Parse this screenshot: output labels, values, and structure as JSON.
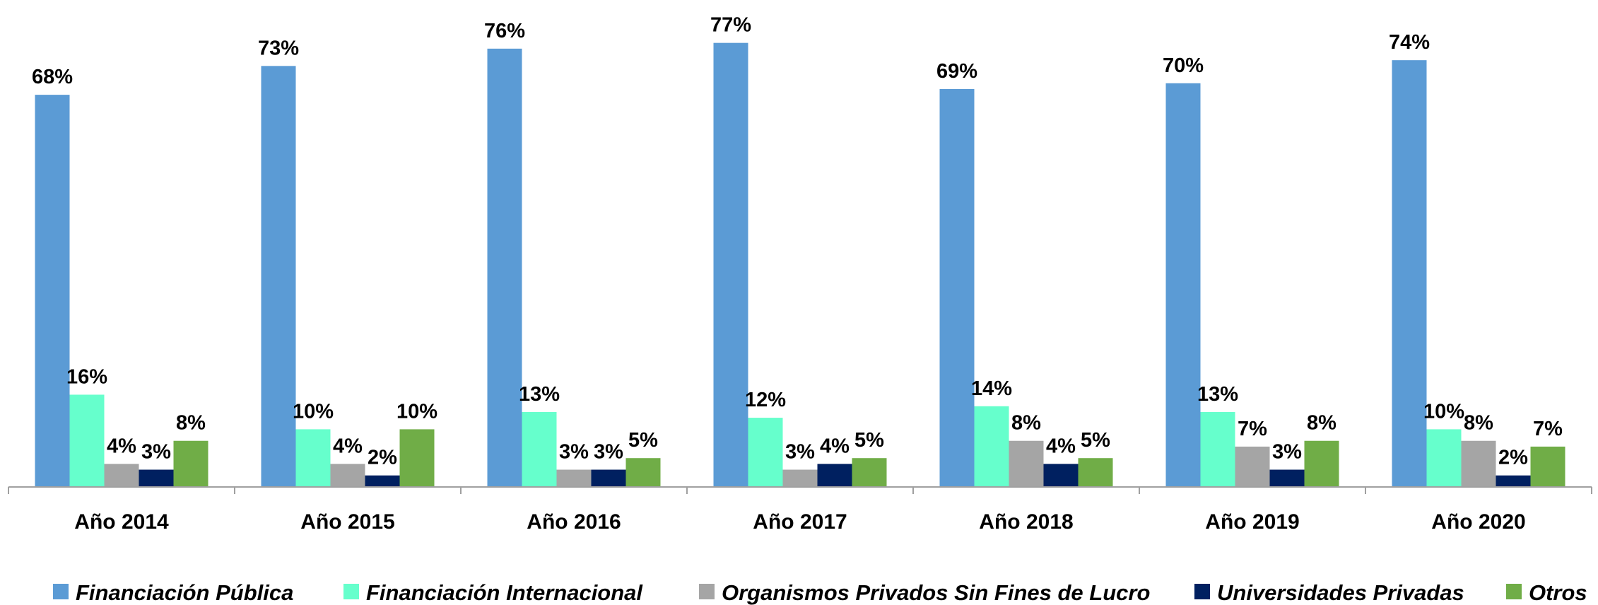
{
  "chart_data": {
    "type": "bar",
    "categories": [
      "Año 2014",
      "Año 2015",
      "Año 2016",
      "Año 2017",
      "Año 2018",
      "Año 2019",
      "Año 2020"
    ],
    "series": [
      {
        "name": "Financiación Pública",
        "color": "#5b9bd5",
        "values": [
          68,
          73,
          76,
          77,
          69,
          70,
          74
        ],
        "value_labels": [
          "68%",
          "73%",
          "76%",
          "77%",
          "69%",
          "70%",
          "74%"
        ]
      },
      {
        "name": "Financiación Internacional",
        "color": "#66ffcc",
        "values": [
          16,
          10,
          13,
          12,
          14,
          13,
          10
        ],
        "value_labels": [
          "16%",
          "10%",
          "13%",
          "12%",
          "14%",
          "13%",
          "10%"
        ]
      },
      {
        "name": "Organismos Privados Sin Fines de Lucro",
        "color": "#a5a5a5",
        "values": [
          4,
          4,
          3,
          3,
          8,
          7,
          8
        ],
        "value_labels": [
          "4%",
          "4%",
          "3%",
          "3%",
          "8%",
          "7%",
          "8%"
        ]
      },
      {
        "name": "Universidades Privadas",
        "color": "#002060",
        "values": [
          3,
          2,
          3,
          4,
          4,
          3,
          2
        ],
        "value_labels": [
          "3%",
          "2%",
          "3%",
          "4%",
          "4%",
          "3%",
          "2%"
        ]
      },
      {
        "name": "Otros",
        "color": "#70ad47",
        "values": [
          8,
          10,
          5,
          5,
          5,
          8,
          7
        ],
        "value_labels": [
          "8%",
          "10%",
          "5%",
          "5%",
          "5%",
          "8%",
          "7%"
        ]
      }
    ],
    "legend": "bottom"
  }
}
